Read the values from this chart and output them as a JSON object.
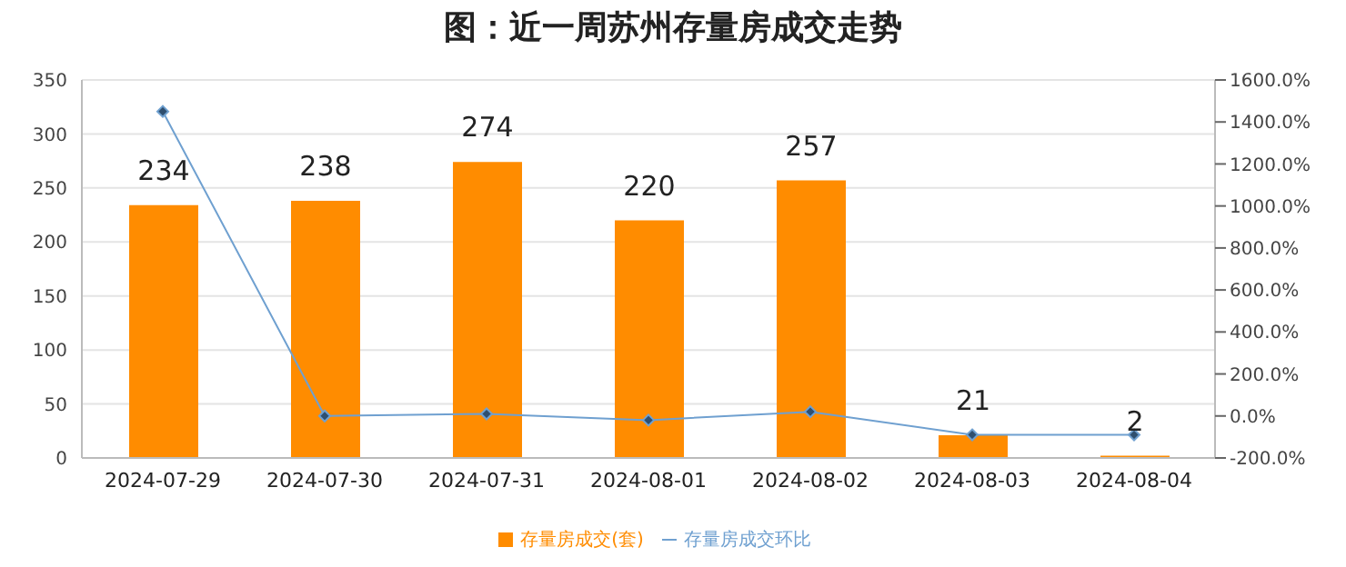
{
  "chart_data": {
    "type": "bar",
    "title": "图：近一周苏州存量房成交走势",
    "categories": [
      "2024-07-29",
      "2024-07-30",
      "2024-07-31",
      "2024-08-01",
      "2024-08-02",
      "2024-08-03",
      "2024-08-04"
    ],
    "series": [
      {
        "name": "存量房成交(套)",
        "color": "#ff8c00",
        "values": [
          234,
          238,
          274,
          220,
          257,
          21,
          2
        ],
        "data_labels": true
      },
      {
        "name": "存量房成交环比",
        "type": "line",
        "axis": "y2",
        "color": "#6fa0d0",
        "marker": "diamond",
        "values": [
          1450,
          0,
          10,
          -20,
          20,
          -90,
          -90
        ]
      }
    ],
    "ylim": [
      0,
      350
    ],
    "yticks": [
      0,
      50,
      100,
      150,
      200,
      250,
      300,
      350
    ],
    "y2lim": [
      -200,
      1600
    ],
    "y2ticks": [
      {
        "value": -200,
        "label": "-200.0%"
      },
      {
        "value": 0,
        "label": "0.0%"
      },
      {
        "value": 200,
        "label": "200.0%"
      },
      {
        "value": 400,
        "label": "400.0%"
      },
      {
        "value": 600,
        "label": "600.0%"
      },
      {
        "value": 800,
        "label": "800.0%"
      },
      {
        "value": 1000,
        "label": "1000.0%"
      },
      {
        "value": 1200,
        "label": "1200.0%"
      },
      {
        "value": 1400,
        "label": "1400.0%"
      },
      {
        "value": 1600,
        "label": "1600.0%"
      }
    ],
    "grid": "y",
    "legend": "bottom"
  }
}
